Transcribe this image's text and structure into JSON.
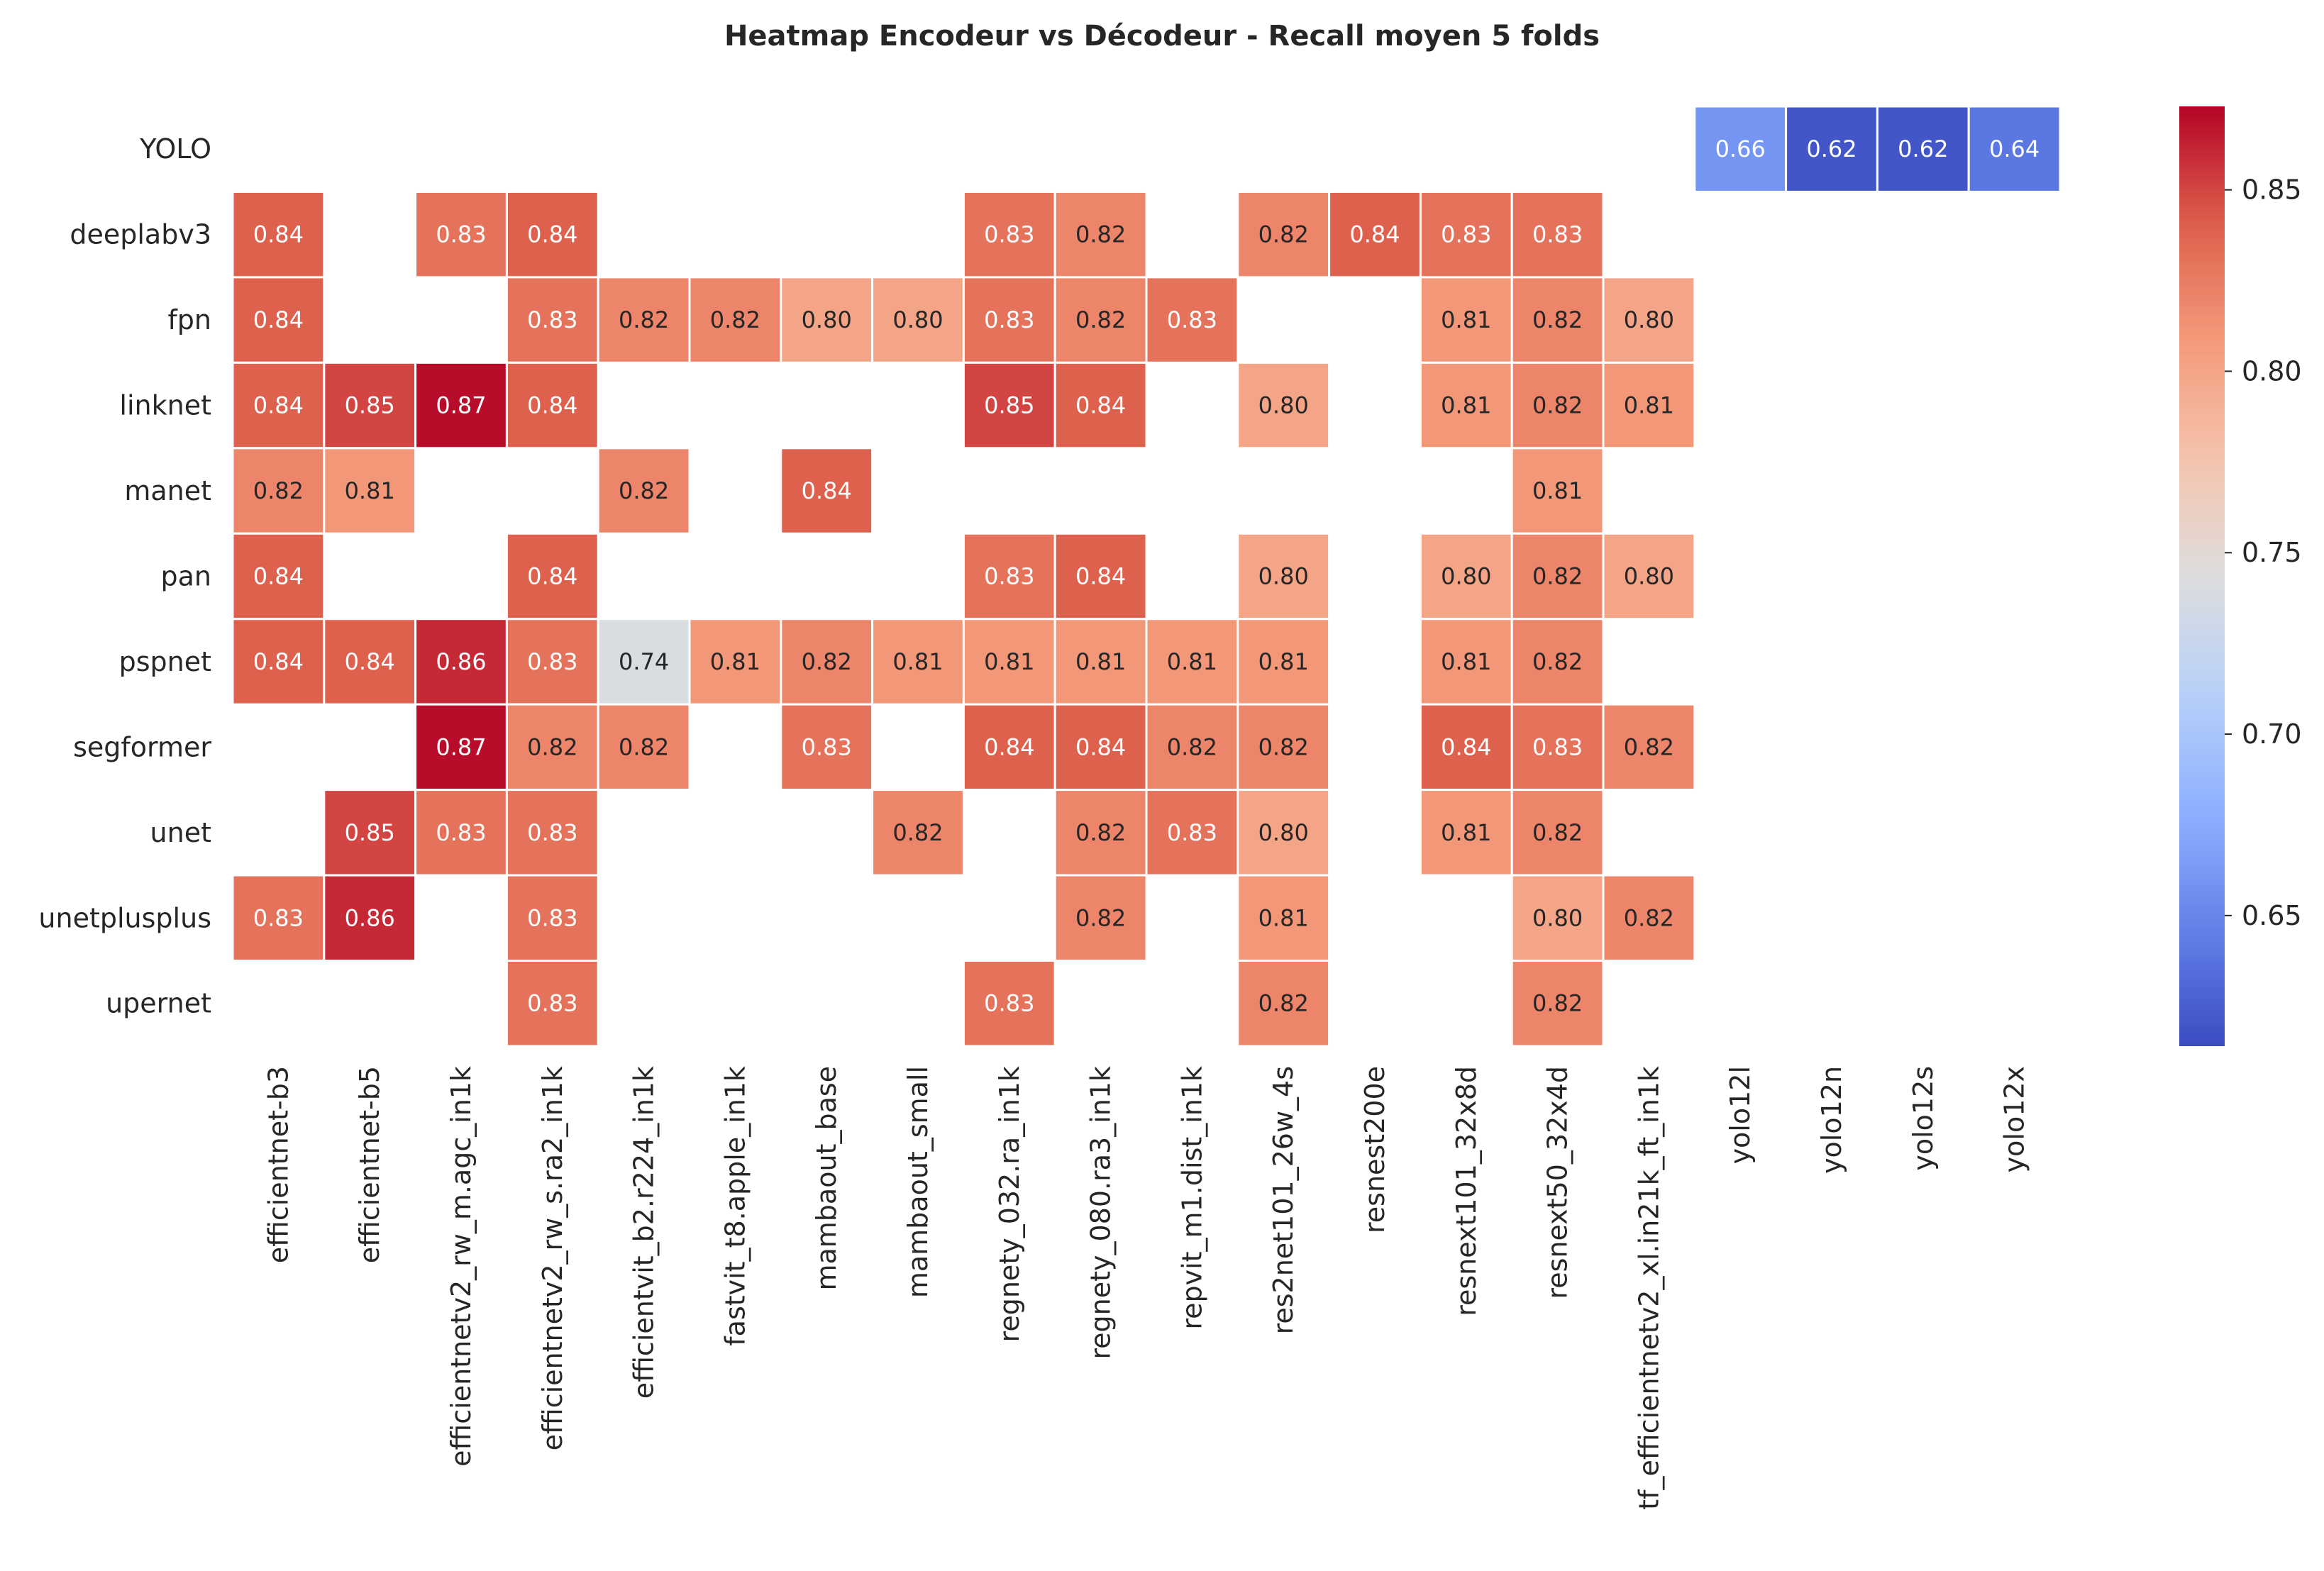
{
  "chart_data": {
    "type": "heatmap",
    "title": "Heatmap Encodeur vs Décodeur - Recall moyen 5 folds",
    "xlabel": "",
    "ylabel": "",
    "rows": [
      "YOLO",
      "deeplabv3",
      "fpn",
      "linknet",
      "manet",
      "pan",
      "pspnet",
      "segformer",
      "unet",
      "unetplusplus",
      "upernet"
    ],
    "columns": [
      "efficientnet-b3",
      "efficientnet-b5",
      "efficientnetv2_rw_m.agc_in1k",
      "efficientnetv2_rw_s.ra2_in1k",
      "efficientvit_b2.r224_in1k",
      "fastvit_t8.apple_in1k",
      "mambaout_base",
      "mambaout_small",
      "regnety_032.ra_in1k",
      "regnety_080.ra3_in1k",
      "repvit_m1.dist_in1k",
      "res2net101_26w_4s",
      "resnest200e",
      "resnext101_32x8d",
      "resnext50_32x4d",
      "tf_efficientnetv2_xl.in21k_ft_in1k",
      "yolo12l",
      "yolo12n",
      "yolo12s",
      "yolo12x"
    ],
    "values": [
      [
        null,
        null,
        null,
        null,
        null,
        null,
        null,
        null,
        null,
        null,
        null,
        null,
        null,
        null,
        null,
        null,
        0.66,
        0.62,
        0.62,
        0.64
      ],
      [
        0.84,
        null,
        0.83,
        0.84,
        null,
        null,
        null,
        null,
        0.83,
        0.82,
        null,
        0.82,
        0.84,
        0.83,
        0.83,
        null,
        null,
        null,
        null,
        null
      ],
      [
        0.84,
        null,
        null,
        0.83,
        0.82,
        0.82,
        0.8,
        0.8,
        0.83,
        0.82,
        0.83,
        null,
        null,
        0.81,
        0.82,
        0.8,
        null,
        null,
        null,
        null
      ],
      [
        0.84,
        0.85,
        0.87,
        0.84,
        null,
        null,
        null,
        null,
        0.85,
        0.84,
        null,
        0.8,
        null,
        0.81,
        0.82,
        0.81,
        null,
        null,
        null,
        null
      ],
      [
        0.82,
        0.81,
        null,
        null,
        0.82,
        null,
        0.84,
        null,
        null,
        null,
        null,
        null,
        null,
        null,
        0.81,
        null,
        null,
        null,
        null,
        null
      ],
      [
        0.84,
        null,
        null,
        0.84,
        null,
        null,
        null,
        null,
        0.83,
        0.84,
        null,
        0.8,
        null,
        0.8,
        0.82,
        0.8,
        null,
        null,
        null,
        null
      ],
      [
        0.84,
        0.84,
        0.86,
        0.83,
        0.74,
        0.81,
        0.82,
        0.81,
        0.81,
        0.81,
        0.81,
        0.81,
        null,
        0.81,
        0.82,
        null,
        null,
        null,
        null,
        null
      ],
      [
        null,
        null,
        0.87,
        0.82,
        0.82,
        null,
        0.83,
        null,
        0.84,
        0.84,
        0.82,
        0.82,
        null,
        0.84,
        0.83,
        0.82,
        null,
        null,
        null,
        null
      ],
      [
        null,
        0.85,
        0.83,
        0.83,
        null,
        null,
        null,
        0.82,
        null,
        0.82,
        0.83,
        0.8,
        null,
        0.81,
        0.82,
        null,
        null,
        null,
        null,
        null
      ],
      [
        0.83,
        0.86,
        null,
        0.83,
        null,
        null,
        null,
        null,
        null,
        0.82,
        null,
        0.81,
        null,
        null,
        0.8,
        0.82,
        null,
        null,
        null,
        null
      ],
      [
        null,
        null,
        null,
        0.83,
        null,
        null,
        null,
        null,
        0.83,
        null,
        null,
        0.82,
        null,
        null,
        0.82,
        null,
        null,
        null,
        null,
        null
      ]
    ],
    "colormap": "coolwarm",
    "vmin": 0.614,
    "vmax": 0.873,
    "colorbar_ticks": [
      0.65,
      0.7,
      0.75,
      0.8,
      0.85
    ],
    "value_format": "2 decimals",
    "grid": false
  }
}
